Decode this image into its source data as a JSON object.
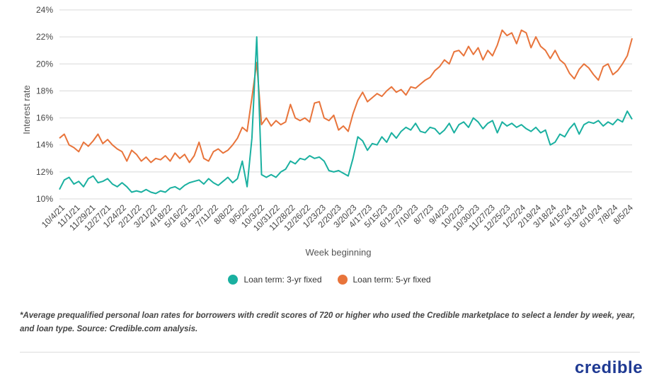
{
  "chart_data": {
    "type": "line",
    "title": "",
    "xlabel": "Week beginning",
    "ylabel": "Interest rate",
    "ylim": [
      10,
      24
    ],
    "yticks": [
      "10%",
      "12%",
      "14%",
      "16%",
      "18%",
      "20%",
      "22%",
      "24%"
    ],
    "grid": true,
    "legend_position": "bottom",
    "x_tick_labels": [
      "10/4/21",
      "11/1/21",
      "11/29/21",
      "12/27/21",
      "1/24/22",
      "2/21/22",
      "3/21/22",
      "4/18/22",
      "5/16/22",
      "6/13/22",
      "7/11/22",
      "8/8/22",
      "9/5/22",
      "10/3/22",
      "10/31/22",
      "11/28/22",
      "12/26/22",
      "1/23/23",
      "2/20/23",
      "3/20/23",
      "4/17/23",
      "5/15/23",
      "6/12/23",
      "7/10/23",
      "8/7/23",
      "9/4/23",
      "10/2/23",
      "10/30/23",
      "11/27/23",
      "12/25/23",
      "1/22/24",
      "2/19/24",
      "3/18/24",
      "4/15/24",
      "5/13/24",
      "6/10/24",
      "7/8/24",
      "8/5/24"
    ],
    "series": [
      {
        "name": "Loan term: 3-yr fixed",
        "color": "#1ab0a0",
        "points": [
          [
            0,
            10.7
          ],
          [
            1,
            11.4
          ],
          [
            2,
            11.6
          ],
          [
            3,
            11.1
          ],
          [
            4,
            11.3
          ],
          [
            5,
            10.9
          ],
          [
            6,
            11.5
          ],
          [
            7,
            11.7
          ],
          [
            8,
            11.2
          ],
          [
            9,
            11.3
          ],
          [
            10,
            11.5
          ],
          [
            11,
            11.1
          ],
          [
            12,
            10.9
          ],
          [
            13,
            11.2
          ],
          [
            14,
            10.9
          ],
          [
            15,
            10.5
          ],
          [
            16,
            10.6
          ],
          [
            17,
            10.5
          ],
          [
            18,
            10.7
          ],
          [
            19,
            10.5
          ],
          [
            20,
            10.4
          ],
          [
            21,
            10.6
          ],
          [
            22,
            10.5
          ],
          [
            23,
            10.8
          ],
          [
            24,
            10.9
          ],
          [
            25,
            10.7
          ],
          [
            26,
            11.0
          ],
          [
            27,
            11.2
          ],
          [
            28,
            11.3
          ],
          [
            29,
            11.4
          ],
          [
            30,
            11.1
          ],
          [
            31,
            11.5
          ],
          [
            32,
            11.2
          ],
          [
            33,
            11.0
          ],
          [
            34,
            11.3
          ],
          [
            35,
            11.6
          ],
          [
            36,
            11.2
          ],
          [
            37,
            11.5
          ],
          [
            38,
            12.8
          ],
          [
            39,
            10.9
          ],
          [
            40,
            14.5
          ],
          [
            41,
            22.0
          ],
          [
            42,
            11.8
          ],
          [
            43,
            11.6
          ],
          [
            44,
            11.8
          ],
          [
            45,
            11.6
          ],
          [
            46,
            12.0
          ],
          [
            47,
            12.2
          ],
          [
            48,
            12.8
          ],
          [
            49,
            12.6
          ],
          [
            50,
            13.0
          ],
          [
            51,
            12.9
          ],
          [
            52,
            13.2
          ],
          [
            53,
            13.0
          ],
          [
            54,
            13.1
          ],
          [
            55,
            12.8
          ],
          [
            56,
            12.1
          ],
          [
            57,
            12.0
          ],
          [
            58,
            12.1
          ],
          [
            59,
            11.9
          ],
          [
            60,
            11.7
          ],
          [
            61,
            13.0
          ],
          [
            62,
            14.6
          ],
          [
            63,
            14.3
          ],
          [
            64,
            13.6
          ],
          [
            65,
            14.1
          ],
          [
            66,
            14.0
          ],
          [
            67,
            14.6
          ],
          [
            68,
            14.2
          ],
          [
            69,
            14.9
          ],
          [
            70,
            14.5
          ],
          [
            71,
            15.0
          ],
          [
            72,
            15.3
          ],
          [
            73,
            15.1
          ],
          [
            74,
            15.6
          ],
          [
            75,
            15.0
          ],
          [
            76,
            14.9
          ],
          [
            77,
            15.3
          ],
          [
            78,
            15.2
          ],
          [
            79,
            14.8
          ],
          [
            80,
            15.1
          ],
          [
            81,
            15.6
          ],
          [
            82,
            14.9
          ],
          [
            83,
            15.5
          ],
          [
            84,
            15.7
          ],
          [
            85,
            15.3
          ],
          [
            86,
            16.0
          ],
          [
            87,
            15.7
          ],
          [
            88,
            15.2
          ],
          [
            89,
            15.6
          ],
          [
            90,
            15.8
          ],
          [
            91,
            14.9
          ],
          [
            92,
            15.7
          ],
          [
            93,
            15.4
          ],
          [
            94,
            15.6
          ],
          [
            95,
            15.3
          ],
          [
            96,
            15.5
          ],
          [
            97,
            15.2
          ],
          [
            98,
            15.0
          ],
          [
            99,
            15.3
          ],
          [
            100,
            14.9
          ],
          [
            101,
            15.1
          ],
          [
            102,
            14.0
          ],
          [
            103,
            14.2
          ],
          [
            104,
            14.8
          ],
          [
            105,
            14.6
          ],
          [
            106,
            15.2
          ],
          [
            107,
            15.6
          ],
          [
            108,
            14.8
          ],
          [
            109,
            15.5
          ],
          [
            110,
            15.7
          ],
          [
            111,
            15.6
          ],
          [
            112,
            15.8
          ],
          [
            113,
            15.4
          ],
          [
            114,
            15.7
          ],
          [
            115,
            15.5
          ],
          [
            116,
            15.9
          ],
          [
            117,
            15.7
          ],
          [
            118,
            16.5
          ],
          [
            119,
            15.9
          ]
        ]
      },
      {
        "name": "Loan term: 5-yr fixed",
        "color": "#e8743b",
        "points": [
          [
            0,
            14.5
          ],
          [
            1,
            14.8
          ],
          [
            2,
            14.0
          ],
          [
            3,
            13.8
          ],
          [
            4,
            13.5
          ],
          [
            5,
            14.2
          ],
          [
            6,
            13.9
          ],
          [
            7,
            14.3
          ],
          [
            8,
            14.8
          ],
          [
            9,
            14.1
          ],
          [
            10,
            14.4
          ],
          [
            11,
            14.0
          ],
          [
            12,
            13.7
          ],
          [
            13,
            13.5
          ],
          [
            14,
            12.8
          ],
          [
            15,
            13.6
          ],
          [
            16,
            13.3
          ],
          [
            17,
            12.8
          ],
          [
            18,
            13.1
          ],
          [
            19,
            12.7
          ],
          [
            20,
            13.0
          ],
          [
            21,
            12.9
          ],
          [
            22,
            13.2
          ],
          [
            23,
            12.8
          ],
          [
            24,
            13.4
          ],
          [
            25,
            13.0
          ],
          [
            26,
            13.3
          ],
          [
            27,
            12.7
          ],
          [
            28,
            13.2
          ],
          [
            29,
            14.2
          ],
          [
            30,
            13.0
          ],
          [
            31,
            12.8
          ],
          [
            32,
            13.5
          ],
          [
            33,
            13.7
          ],
          [
            34,
            13.4
          ],
          [
            35,
            13.6
          ],
          [
            36,
            14.0
          ],
          [
            37,
            14.5
          ],
          [
            38,
            15.3
          ],
          [
            39,
            15.0
          ],
          [
            40,
            17.5
          ],
          [
            41,
            20.1
          ],
          [
            42,
            15.5
          ],
          [
            43,
            16.0
          ],
          [
            44,
            15.4
          ],
          [
            45,
            15.8
          ],
          [
            46,
            15.5
          ],
          [
            47,
            15.7
          ],
          [
            48,
            17.0
          ],
          [
            49,
            16.0
          ],
          [
            50,
            15.8
          ],
          [
            51,
            16.0
          ],
          [
            52,
            15.7
          ],
          [
            53,
            17.1
          ],
          [
            54,
            17.2
          ],
          [
            55,
            16.0
          ],
          [
            56,
            15.8
          ],
          [
            57,
            16.2
          ],
          [
            58,
            15.1
          ],
          [
            59,
            15.4
          ],
          [
            60,
            15.0
          ],
          [
            61,
            16.3
          ],
          [
            62,
            17.3
          ],
          [
            63,
            17.9
          ],
          [
            64,
            17.2
          ],
          [
            65,
            17.5
          ],
          [
            66,
            17.8
          ],
          [
            67,
            17.6
          ],
          [
            68,
            18.0
          ],
          [
            69,
            18.3
          ],
          [
            70,
            17.9
          ],
          [
            71,
            18.1
          ],
          [
            72,
            17.7
          ],
          [
            73,
            18.3
          ],
          [
            74,
            18.2
          ],
          [
            75,
            18.5
          ],
          [
            76,
            18.8
          ],
          [
            77,
            19.0
          ],
          [
            78,
            19.5
          ],
          [
            79,
            19.8
          ],
          [
            80,
            20.3
          ],
          [
            81,
            20.0
          ],
          [
            82,
            20.9
          ],
          [
            83,
            21.0
          ],
          [
            84,
            20.6
          ],
          [
            85,
            21.3
          ],
          [
            86,
            20.7
          ],
          [
            87,
            21.2
          ],
          [
            88,
            20.3
          ],
          [
            89,
            21.0
          ],
          [
            90,
            20.6
          ],
          [
            91,
            21.4
          ],
          [
            92,
            22.5
          ],
          [
            93,
            22.1
          ],
          [
            94,
            22.3
          ],
          [
            95,
            21.5
          ],
          [
            96,
            22.5
          ],
          [
            97,
            22.3
          ],
          [
            98,
            21.2
          ],
          [
            99,
            22.0
          ],
          [
            100,
            21.3
          ],
          [
            101,
            21.0
          ],
          [
            102,
            20.4
          ],
          [
            103,
            21.0
          ],
          [
            104,
            20.3
          ],
          [
            105,
            20.0
          ],
          [
            106,
            19.3
          ],
          [
            107,
            18.9
          ],
          [
            108,
            19.6
          ],
          [
            109,
            20.0
          ],
          [
            110,
            19.7
          ],
          [
            111,
            19.2
          ],
          [
            112,
            18.8
          ],
          [
            113,
            19.8
          ],
          [
            114,
            20.0
          ],
          [
            115,
            19.2
          ],
          [
            116,
            19.5
          ],
          [
            117,
            20.0
          ],
          [
            118,
            20.6
          ],
          [
            119,
            21.9
          ]
        ]
      }
    ]
  },
  "footnote": "*Average prequalified personal loan rates for borrowers with credit scores of 720 or higher who used the Credible marketplace to select a lender by week, year, and loan type. Source: Credible.com analysis.",
  "logo_text": "credible"
}
